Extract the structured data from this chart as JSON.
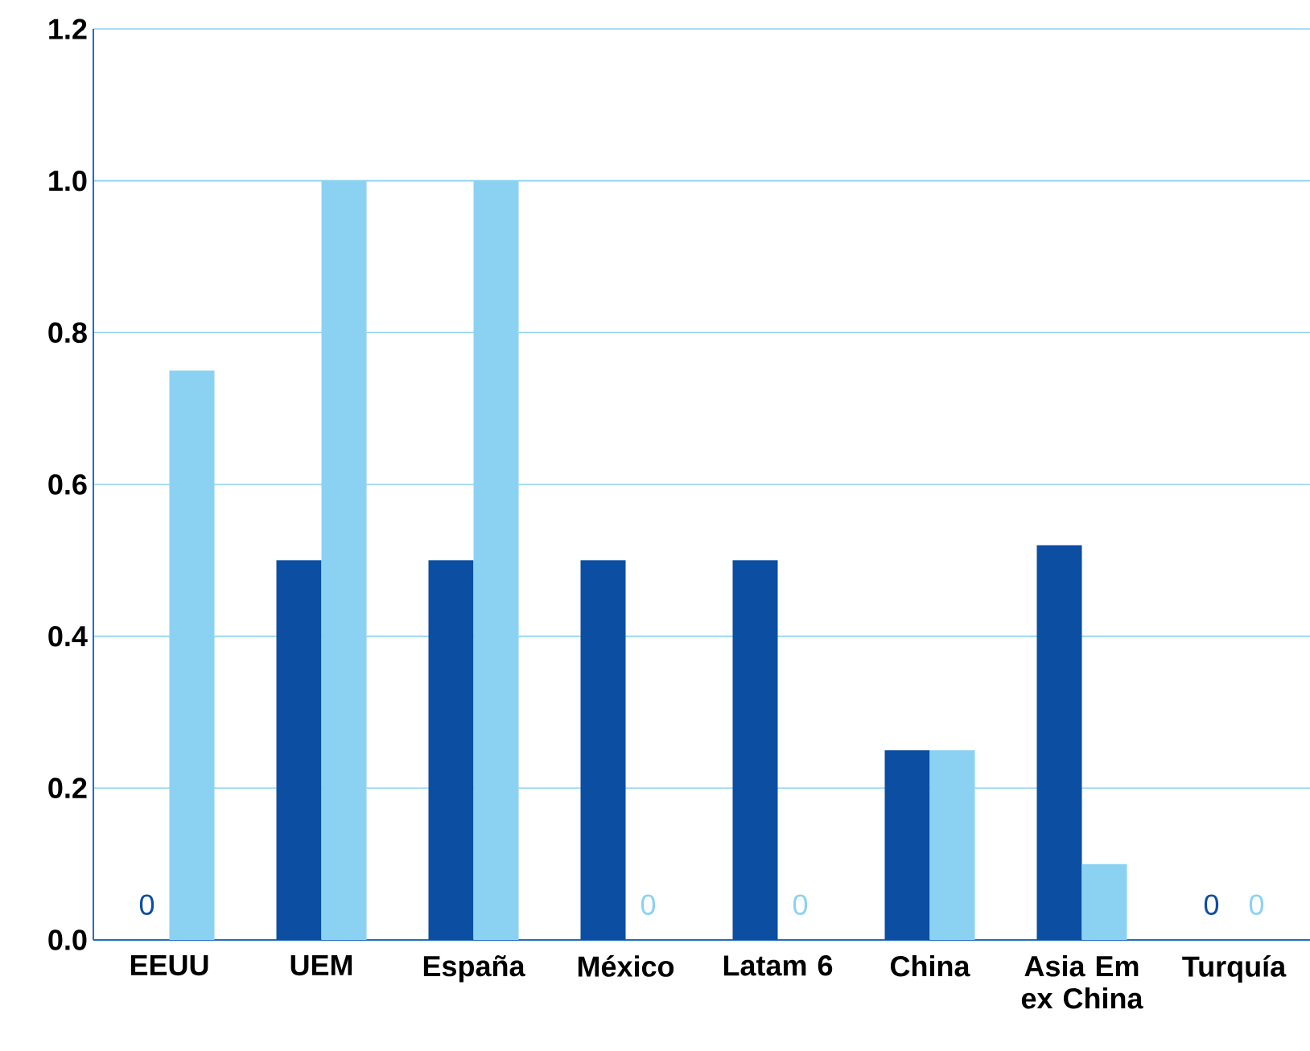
{
  "chart_data": {
    "type": "bar",
    "categories": [
      "EEUU",
      "UEM",
      "España",
      "México",
      "Latam 6",
      "China",
      "Asia Em ex China",
      "Turquía"
    ],
    "series": [
      {
        "color": "#0b4ea2",
        "values": [
          0,
          0.5,
          0.5,
          0.5,
          0.5,
          0.25,
          0.52,
          0
        ],
        "value_labels": [
          "0",
          null,
          null,
          null,
          null,
          null,
          null,
          "0"
        ]
      },
      {
        "color": "#8bd2f2",
        "values": [
          0.75,
          1.0,
          1.0,
          0,
          0,
          0.25,
          0.1,
          0
        ],
        "value_labels": [
          null,
          null,
          null,
          "0",
          "0",
          null,
          null,
          "0"
        ]
      }
    ],
    "ylim": [
      0,
      1.2
    ],
    "yticks": [
      {
        "value": 0,
        "label": "0.0"
      },
      {
        "value": 0.2,
        "label": "0.2"
      },
      {
        "value": 0.4,
        "label": "0.4"
      },
      {
        "value": 0.6,
        "label": "0.6"
      },
      {
        "value": 0.8,
        "label": "0.8"
      },
      {
        "value": 1.0,
        "label": "1.0"
      },
      {
        "value": 1.2,
        "label": "1.2"
      }
    ],
    "grid": "y"
  }
}
